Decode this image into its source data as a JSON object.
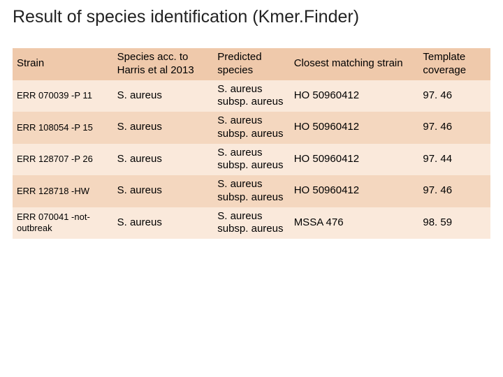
{
  "title": "Result of species identification (Kmer.Finder)",
  "columns": [
    "Strain",
    "Species acc. to Harris et al 2013",
    "Predicted species",
    "Closest matching strain",
    "Template coverage"
  ],
  "rows": [
    {
      "strain": "ERR 070039 -P 11",
      "species": "S. aureus",
      "predicted": "S. aureus subsp. aureus",
      "closest": "HO 50960412",
      "coverage": "97. 46"
    },
    {
      "strain": "ERR 108054 -P 15",
      "species": "S. aureus",
      "predicted": "S. aureus subsp. aureus",
      "closest": "HO 50960412",
      "coverage": "97. 46"
    },
    {
      "strain": "ERR 128707 -P 26",
      "species": "S. aureus",
      "predicted": "S. aureus subsp. aureus",
      "closest": "HO 50960412",
      "coverage": "97. 44"
    },
    {
      "strain": "ERR 128718 -HW",
      "species": "S. aureus",
      "predicted": "S. aureus subsp. aureus",
      "closest": "HO 50960412",
      "coverage": "97. 46"
    },
    {
      "strain": "ERR 070041 -not-outbreak",
      "species": "S. aureus",
      "predicted": "S. aureus subsp. aureus",
      "closest": "MSSA 476",
      "coverage": "98. 59"
    }
  ],
  "colors": {
    "header_bg": "#efc9ab",
    "row_light": "#fae9db",
    "row_dark": "#f4d7bf",
    "text": "#222222"
  }
}
